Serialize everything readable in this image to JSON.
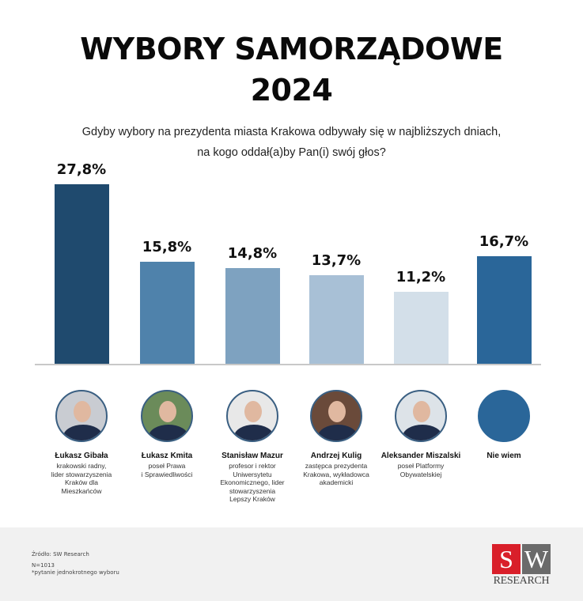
{
  "title": {
    "line1": "WYBORY SAMORZĄDOWE",
    "line2": "2024"
  },
  "subtitle": {
    "line1": "Gdyby wybory na prezydenta miasta Krakowa odbywały się w najbliższych dniach,",
    "line2": "na kogo oddał(a)by Pan(i) swój głos?"
  },
  "chart_data": {
    "type": "bar",
    "title": "WYBORY SAMORZĄDOWE 2024",
    "subtitle": "Gdyby wybory na prezydenta miasta Krakowa odbywały się w najbliższych dniach, na kogo oddał(a)by Pan(i) swój głos?",
    "categories": [
      "Łukasz Gibała",
      "Łukasz Kmita",
      "Stanisław Mazur",
      "Andrzej Kulig",
      "Aleksander Miszalski",
      "Nie wiem"
    ],
    "values": [
      27.8,
      15.8,
      14.8,
      13.7,
      11.2,
      16.7
    ],
    "labels": [
      "27,8%",
      "15,8%",
      "14,8%",
      "13,7%",
      "11,2%",
      "16,7%"
    ],
    "colors": [
      "#1f4a6e",
      "#4f82ab",
      "#7ea2c0",
      "#a8c0d6",
      "#d3dfe9",
      "#2a6699"
    ],
    "xlabel": "",
    "ylabel": "",
    "grid": false,
    "legend": "none"
  },
  "candidates": [
    {
      "name": "Łukasz Gibała",
      "desc": [
        "krakowski radny,",
        "lider stowarzyszenia",
        "Kraków dla",
        "Mieszkańców"
      ]
    },
    {
      "name": "Łukasz Kmita",
      "desc": [
        "poseł Prawa",
        "i Sprawiedliwości"
      ]
    },
    {
      "name": "Stanisław Mazur",
      "desc": [
        "profesor i rektor",
        "Uniwersytetu",
        "Ekonomicznego, lider",
        "stowarzyszenia",
        "Lepszy Kraków"
      ]
    },
    {
      "name": "Andrzej Kulig",
      "desc": [
        "zastępca prezydenta",
        "Krakowa, wykładowca",
        "akademicki"
      ]
    },
    {
      "name": "Aleksander Miszalski",
      "desc": [
        "poseł Platformy",
        "Obywatelskiej"
      ]
    },
    {
      "name": "Nie wiem",
      "desc": []
    }
  ],
  "footer": {
    "source": "Źródło: SW Research",
    "n": "N=1013",
    "note": "*pytanie jednokrotnego wyboru",
    "logo": {
      "s": "S",
      "w": "W",
      "research": "RESEARCH"
    }
  }
}
